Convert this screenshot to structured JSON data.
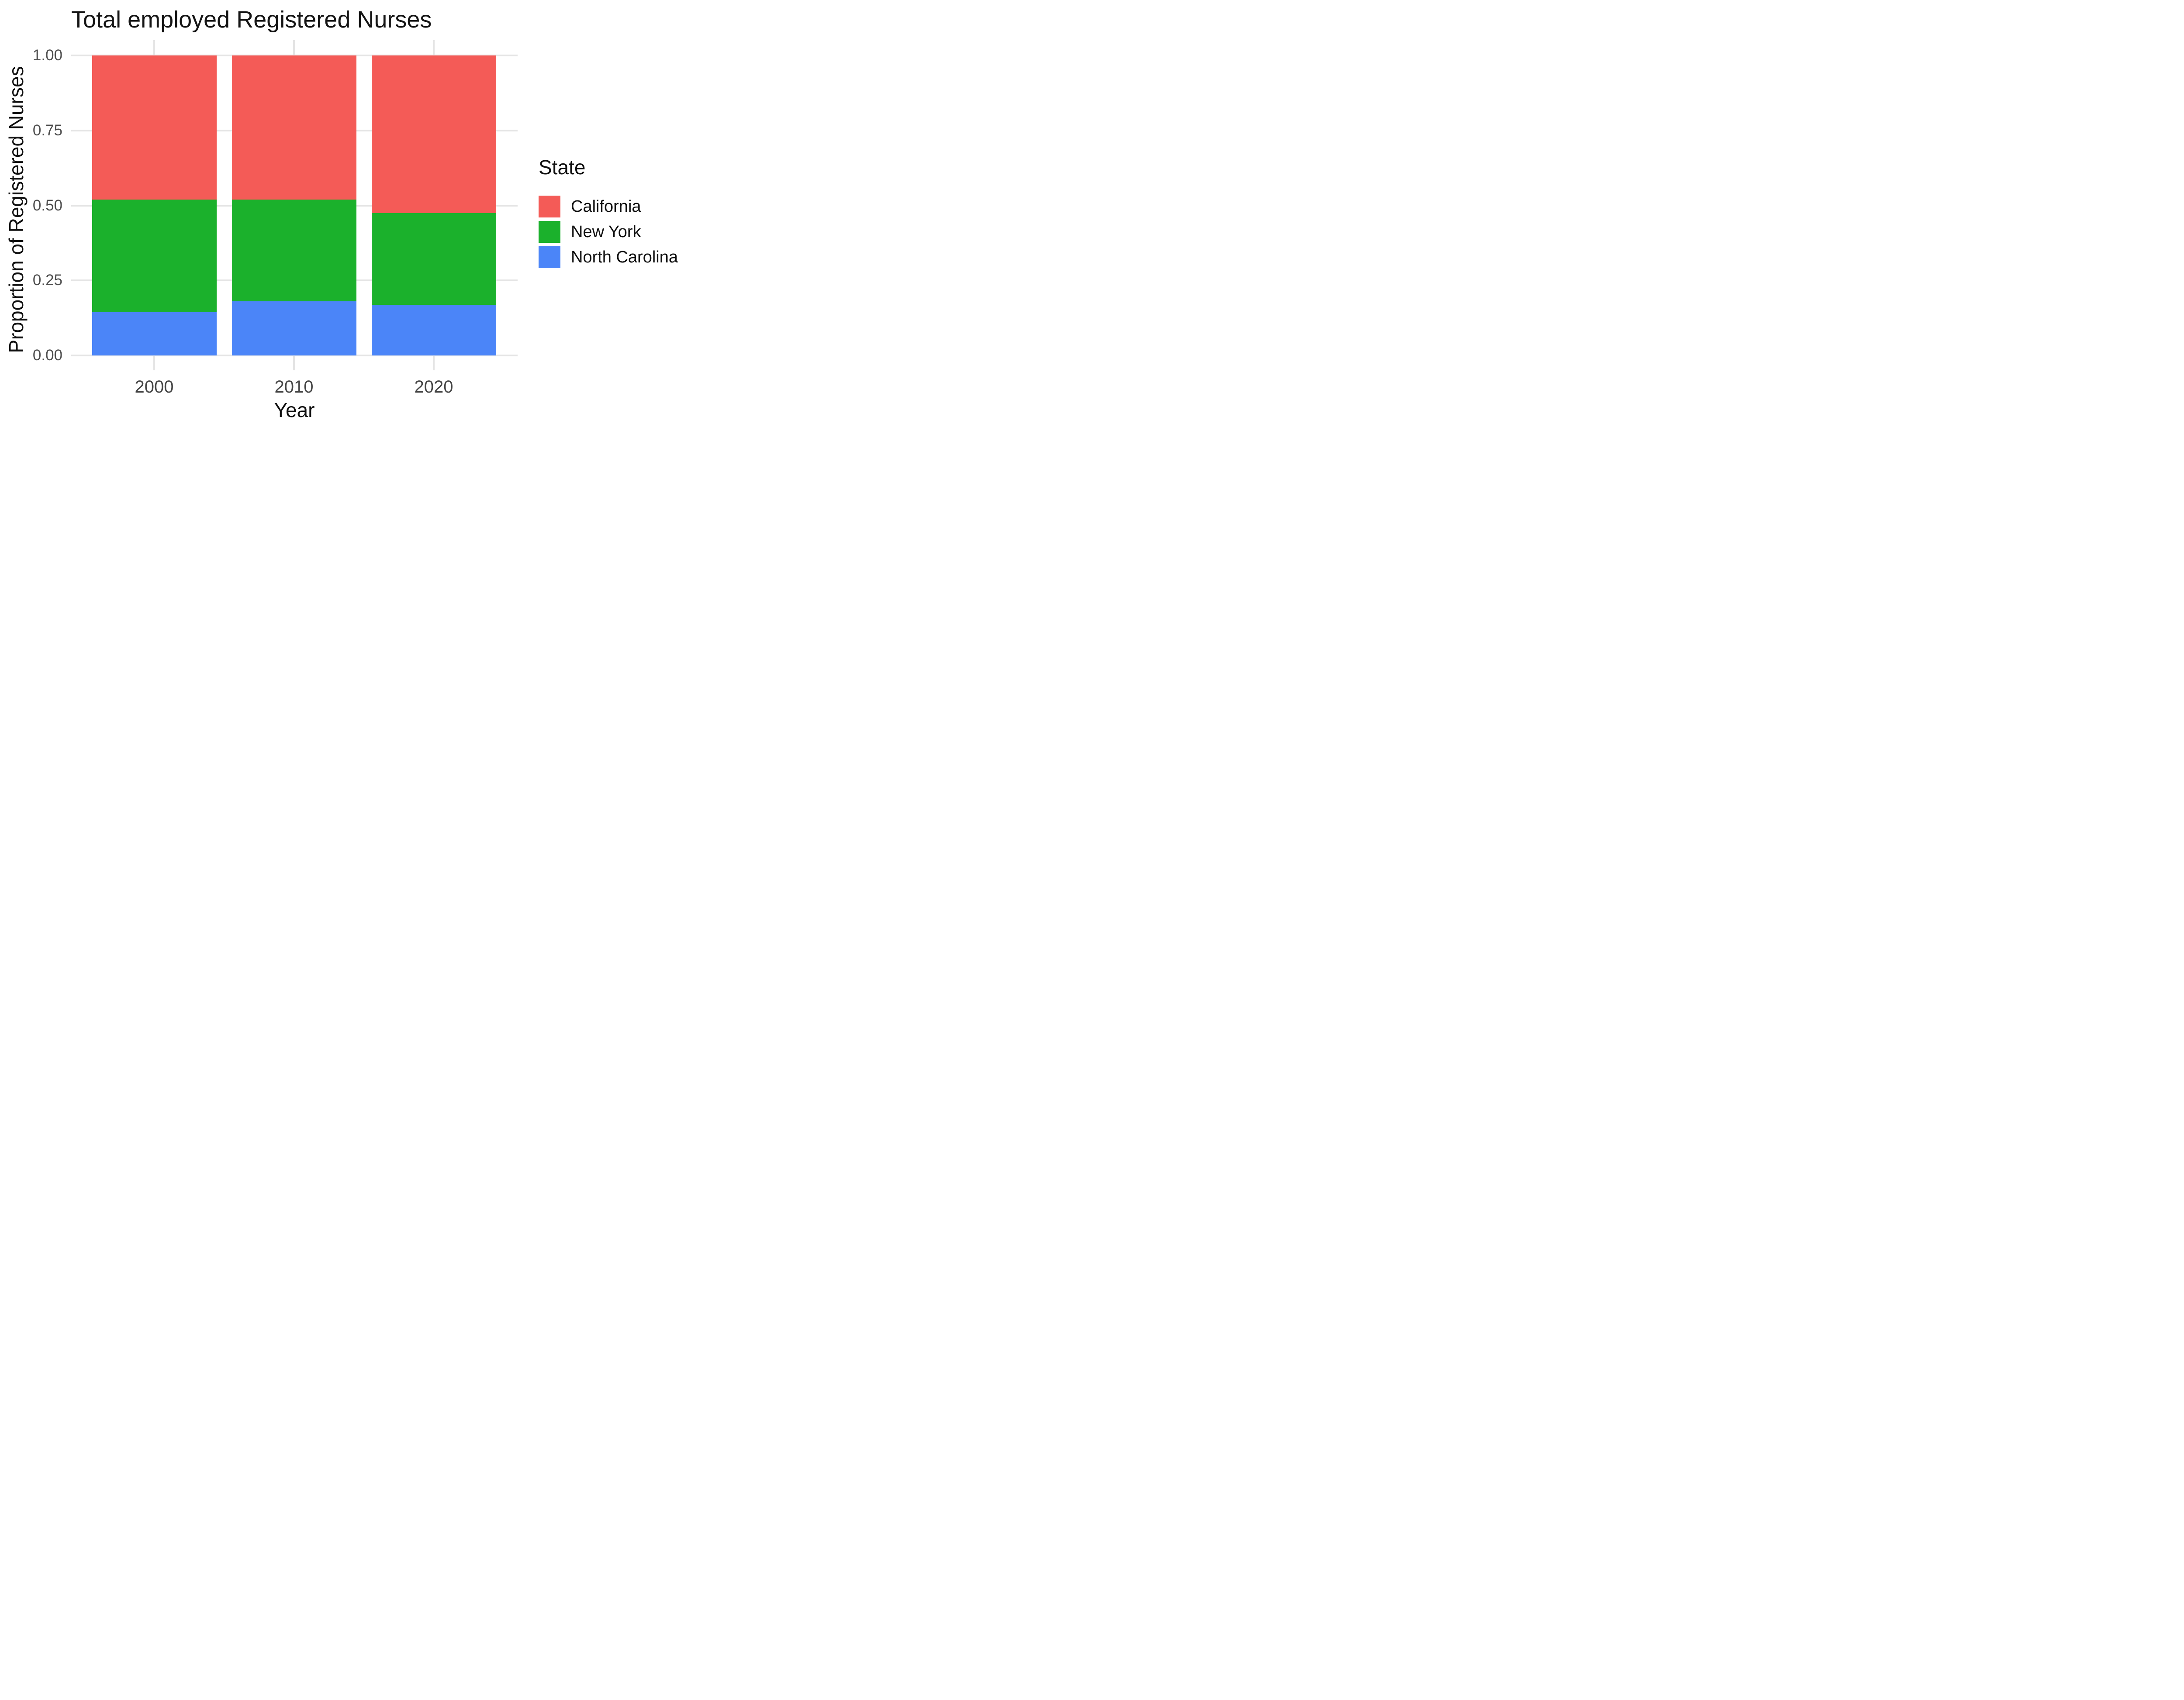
{
  "title": "Total employed Registered Nurses",
  "y_axis": {
    "label": "Proportion of Registered Nurses",
    "ticks": [
      {
        "label": "1.00",
        "value": 1.0
      },
      {
        "label": "0.75",
        "value": 0.75
      },
      {
        "label": "0.50",
        "value": 0.5
      },
      {
        "label": "0.25",
        "value": 0.25
      },
      {
        "label": "0.00",
        "value": 0.0
      }
    ]
  },
  "x_axis": {
    "label": "Year",
    "categories": [
      "2000",
      "2010",
      "2020"
    ]
  },
  "legend": {
    "title": "State",
    "items": [
      {
        "label": "California",
        "color": "#f45b57"
      },
      {
        "label": "New York",
        "color": "#1bb12c"
      },
      {
        "label": "North Carolina",
        "color": "#4b85f8"
      }
    ]
  },
  "chart_data": {
    "type": "bar",
    "stacked": true,
    "title": "Total employed Registered Nurses",
    "xlabel": "Year",
    "ylabel": "Proportion of Registered Nurses",
    "categories": [
      "2000",
      "2010",
      "2020"
    ],
    "series": [
      {
        "name": "California",
        "color": "#f45b57",
        "values": [
          0.48,
          0.48,
          0.526
        ]
      },
      {
        "name": "New York",
        "color": "#1bb12c",
        "values": [
          0.376,
          0.339,
          0.305
        ]
      },
      {
        "name": "North Carolina",
        "color": "#4b85f8",
        "values": [
          0.144,
          0.181,
          0.169
        ]
      }
    ],
    "stack_order_bottom_to_top": [
      "North Carolina",
      "New York",
      "California"
    ],
    "ylim": [
      0,
      1
    ],
    "y_gridlines": [
      0,
      0.25,
      0.5,
      0.75,
      1.0
    ],
    "grid": true,
    "legend_position": "right"
  }
}
